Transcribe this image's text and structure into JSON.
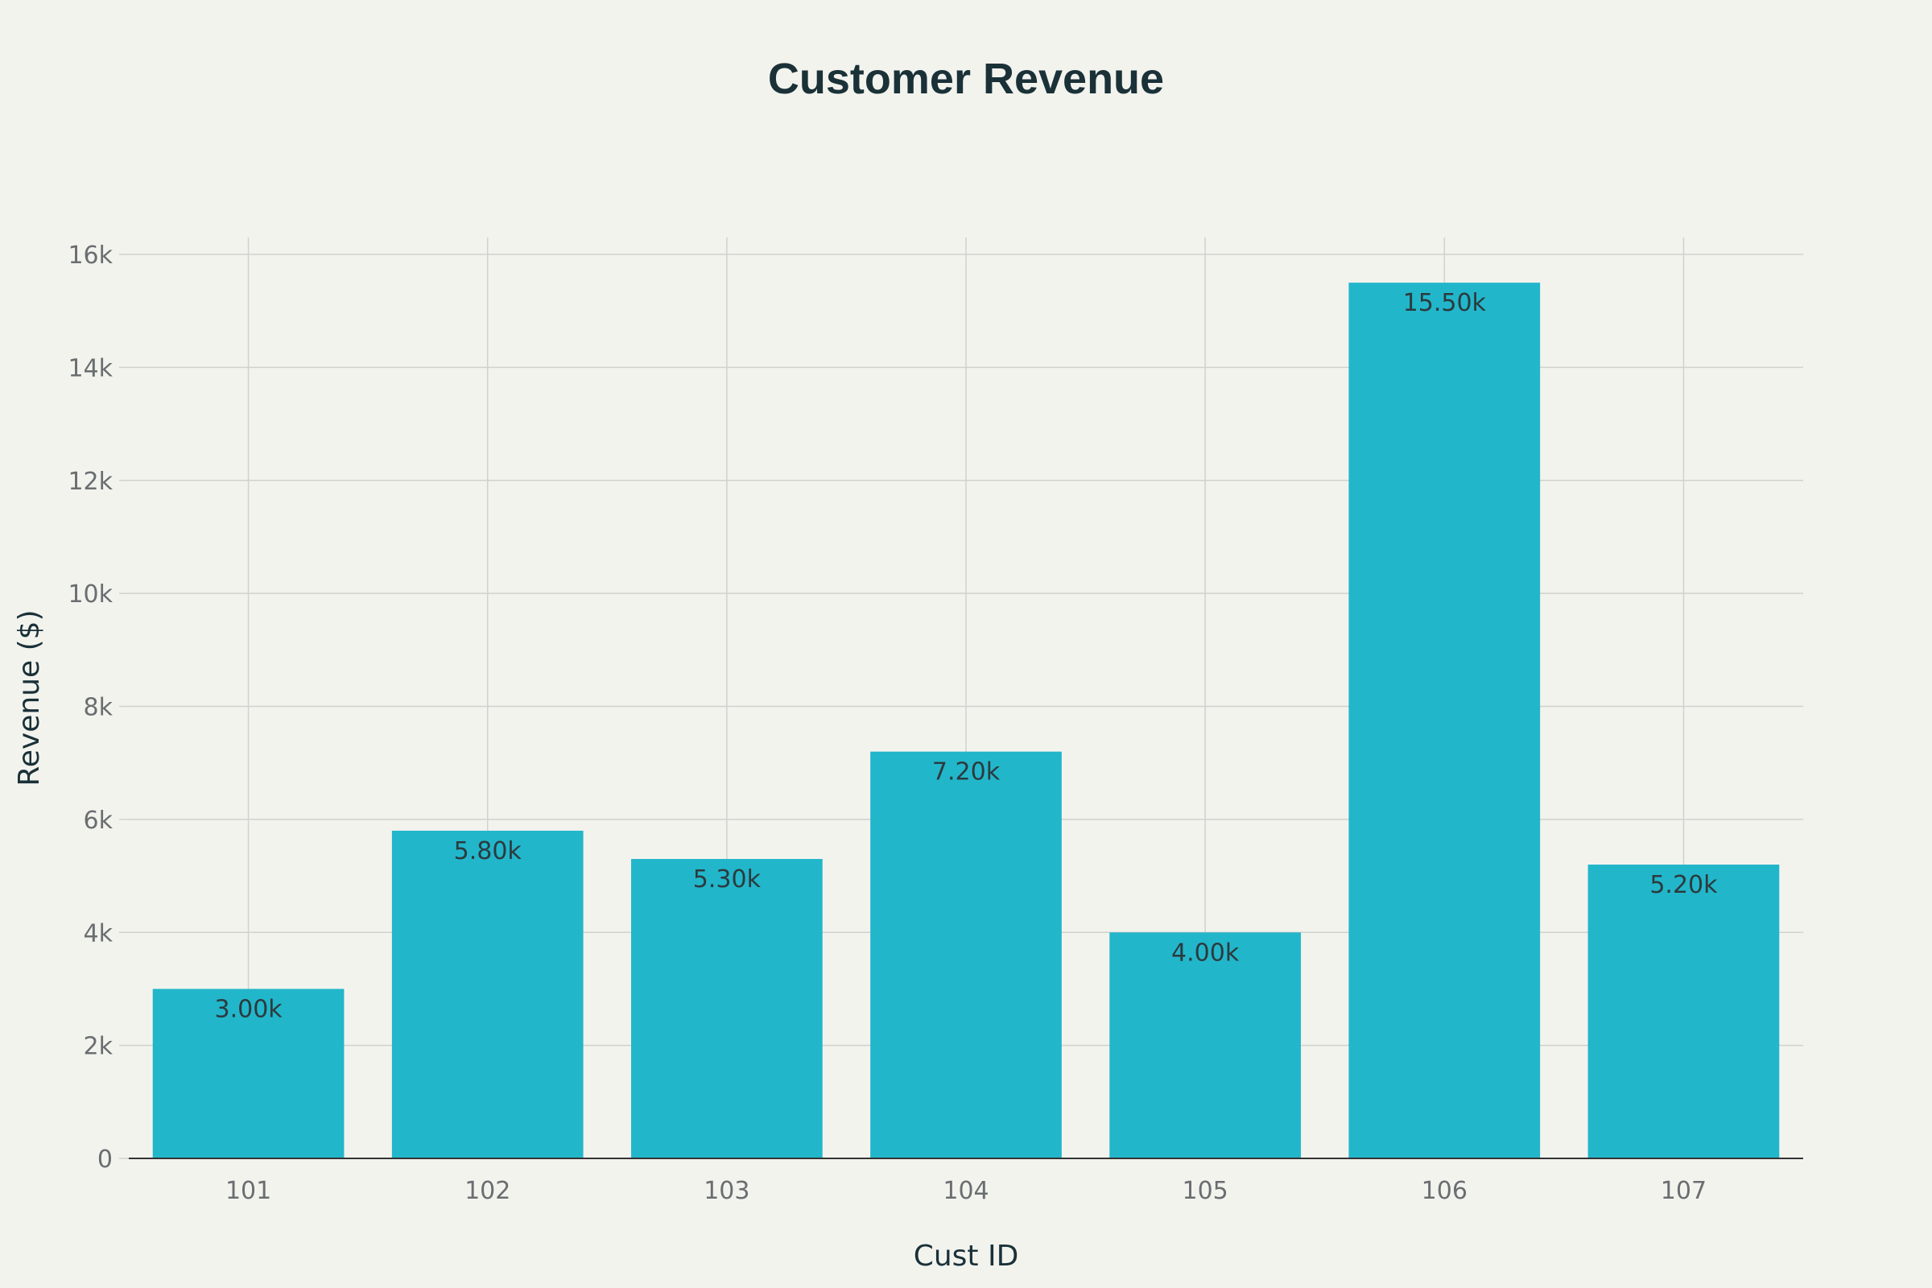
{
  "chart_data": {
    "type": "bar",
    "title": "Customer Revenue",
    "xlabel": "Cust ID",
    "ylabel": "Revenue ($)",
    "categories": [
      "101",
      "102",
      "103",
      "104",
      "105",
      "106",
      "107"
    ],
    "values": [
      3000,
      5800,
      5300,
      7200,
      4000,
      15500,
      5200
    ],
    "data_labels": [
      "3.00k",
      "5.80k",
      "5.30k",
      "7.20k",
      "4.00k",
      "15.50k",
      "5.20k"
    ],
    "ylim": [
      0,
      16300
    ],
    "y_ticks": [
      0,
      2000,
      4000,
      6000,
      8000,
      10000,
      12000,
      14000,
      16000
    ],
    "y_tick_labels": [
      "0",
      "2k",
      "4k",
      "6k",
      "8k",
      "10k",
      "12k",
      "14k",
      "16k"
    ],
    "grid": true,
    "legend": "none",
    "colors": {
      "bar": "#22b6cb",
      "background": "#f3f3ee",
      "title": "#1a3138"
    }
  }
}
